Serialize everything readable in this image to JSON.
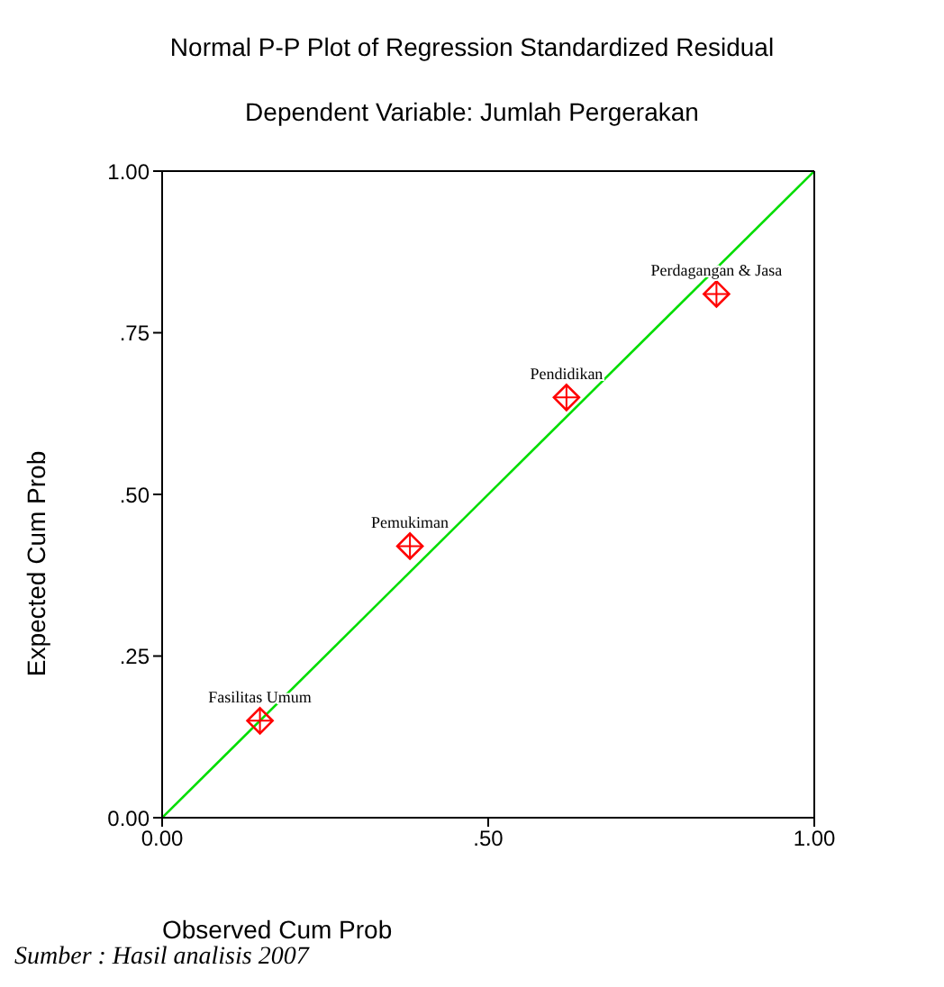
{
  "chart_data": {
    "type": "scatter",
    "title": "Normal P-P Plot of Regression Standardized Residual",
    "subtitle": "Dependent Variable: Jumlah Pergerakan",
    "xlabel": "Observed Cum Prob",
    "ylabel": "Expected Cum Prob",
    "series": [
      {
        "color": "#ff0000",
        "marker": "diamond",
        "x": [
          0.15,
          0.38,
          0.62,
          0.85
        ],
        "values": [
          0.15,
          0.42,
          0.65,
          0.81
        ]
      },
      {
        "type": "line",
        "color": "#00dd00",
        "marker": "none",
        "x": [
          0,
          1
        ],
        "values": [
          0,
          1
        ]
      }
    ],
    "xlim": [
      0,
      1
    ],
    "ylim": [
      0,
      1
    ],
    "xticks": [
      {
        "value": 0,
        "label": "0.00"
      },
      {
        "value": 0.5,
        "label": ".50"
      },
      {
        "value": 1,
        "label": "1.00"
      }
    ],
    "yticks": [
      {
        "value": 0,
        "label": "0.00"
      },
      {
        "value": 0.25,
        "label": ".25"
      },
      {
        "value": 0.5,
        "label": ".50"
      },
      {
        "value": 0.75,
        "label": ".75"
      },
      {
        "value": 1,
        "label": "1.00"
      }
    ],
    "annotations": [
      {
        "text": "Fasilitas Umum",
        "x": 0.15,
        "y": 0.15
      },
      {
        "text": "Pemukiman",
        "x": 0.38,
        "y": 0.42
      },
      {
        "text": "Pendidikan",
        "x": 0.62,
        "y": 0.65
      },
      {
        "text": "Perdagangan & Jasa",
        "x": 0.85,
        "y": 0.81
      },
      "Sumber : Hasil analisis 2007"
    ]
  }
}
